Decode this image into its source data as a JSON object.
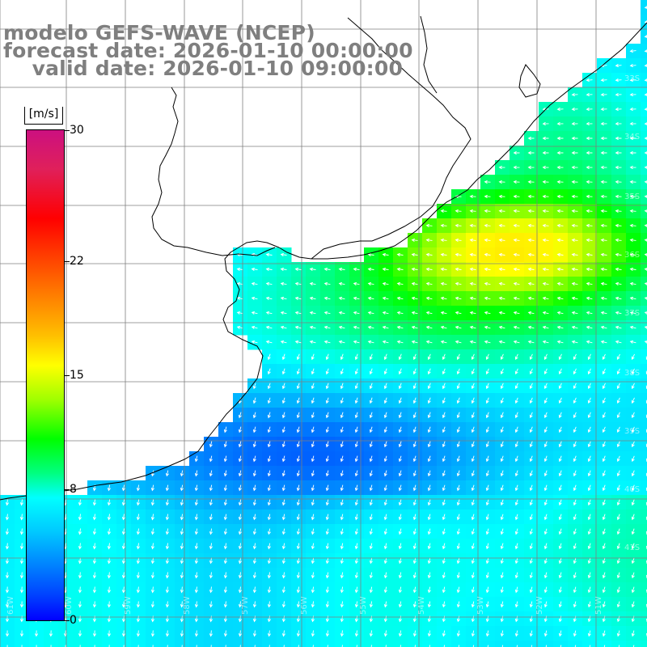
{
  "title": {
    "line1": "modelo GEFS-WAVE (NCEP)",
    "line2": "forecast date: 2026-01-10 00:00:00",
    "line3": "    valid date: 2026-01-10 09:00:00"
  },
  "colorbar": {
    "unit": "[m/s]",
    "ticks": [
      "30",
      "22",
      "15",
      "8",
      "0"
    ],
    "tick_values": [
      30,
      22,
      15,
      8,
      0
    ],
    "min": 0,
    "max": 30
  },
  "axes": {
    "lat_labels": [
      "33S",
      "34S",
      "35S",
      "36S",
      "37S",
      "38S",
      "39S",
      "40S",
      "41S"
    ],
    "lon_labels": [
      "61W",
      "60W",
      "59W",
      "58W",
      "57W",
      "56W",
      "55W",
      "54W",
      "53W",
      "52W",
      "51W"
    ]
  },
  "colors": {
    "coast": "#000000",
    "grid": "#7f7f7f",
    "title": "#7f7f7f",
    "arrow": "#ffffff"
  }
}
